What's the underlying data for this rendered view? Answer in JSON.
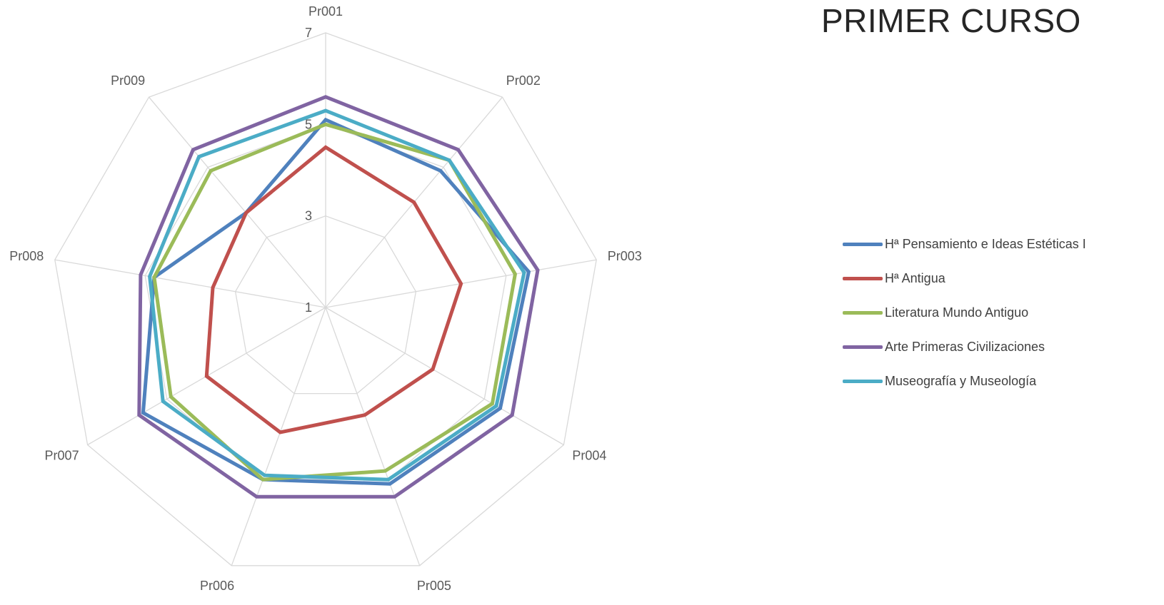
{
  "chart_data": {
    "type": "radar",
    "title": "PRIMER CURSO",
    "categories": [
      "Pr001",
      "Pr002",
      "Pr003",
      "Pr004",
      "Pr005",
      "Pr006",
      "Pr007",
      "Pr008",
      "Pr009"
    ],
    "axis": {
      "min": 1,
      "max": 7,
      "ticks": [
        1,
        3,
        5,
        7
      ]
    },
    "grid": true,
    "legend_position": "right",
    "series": [
      {
        "name": "Hª Pensamiento e Ideas Estéticas I",
        "color": "#4F81BD",
        "values": [
          5.1,
          4.9,
          5.5,
          5.4,
          5.1,
          5.0,
          5.6,
          4.8,
          3.7
        ]
      },
      {
        "name": "Hª Antigua",
        "color": "#C0504D",
        "values": [
          4.5,
          4.0,
          4.0,
          3.7,
          3.5,
          3.9,
          4.0,
          3.5,
          3.7
        ]
      },
      {
        "name": "Literatura Mundo Antiguo",
        "color": "#9BBB59",
        "values": [
          5.0,
          5.2,
          5.2,
          5.2,
          4.8,
          5.0,
          4.9,
          4.8,
          4.9
        ]
      },
      {
        "name": "Arte Primeras Civilizaciones",
        "color": "#8064A2",
        "values": [
          5.6,
          5.5,
          5.7,
          5.7,
          5.4,
          5.4,
          5.7,
          5.1,
          5.5
        ]
      },
      {
        "name": "Museografía y Museología",
        "color": "#4BACC6",
        "values": [
          5.3,
          5.2,
          5.4,
          5.3,
          5.0,
          4.9,
          5.1,
          4.9,
          5.3
        ]
      }
    ]
  }
}
